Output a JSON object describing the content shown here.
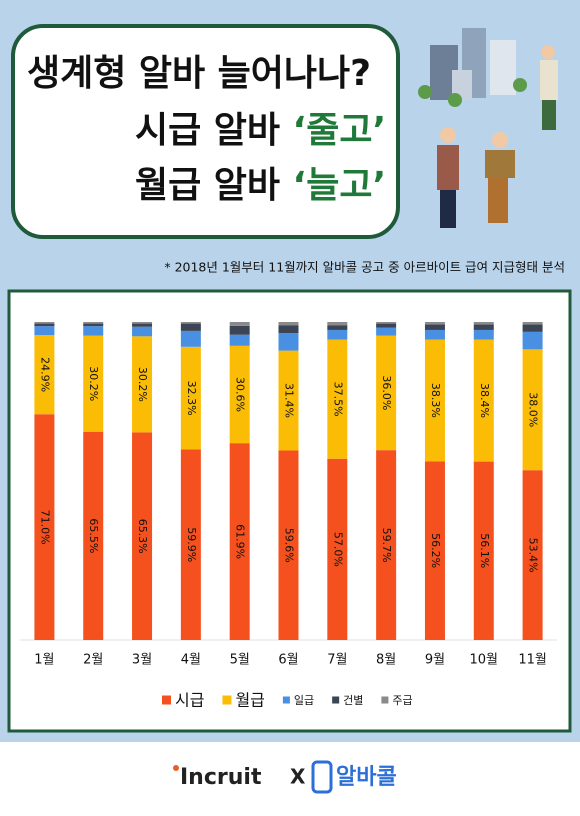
{
  "header": {
    "title_lines": [
      [
        {
          "text": "생계형 알바 늘어나나?",
          "accent": false
        }
      ],
      [
        {
          "text": "시급 알바 ",
          "accent": false
        },
        {
          "text": "‘줄고’",
          "accent": true
        }
      ],
      [
        {
          "text": "월급 알바 ",
          "accent": false
        },
        {
          "text": "‘늘고’",
          "accent": true
        }
      ]
    ],
    "note": "* 2018년 1월부터 11월까지 알바콜 공고 중 아르바이트 급여 지급형태 분석"
  },
  "chart_data": {
    "type": "stacked_bar",
    "categories": [
      "1월",
      "2월",
      "3월",
      "4월",
      "5월",
      "6월",
      "7월",
      "8월",
      "9월",
      "10월",
      "11월"
    ],
    "ylim": [
      0,
      100
    ],
    "series": [
      {
        "name": "시급",
        "color": "#f4511e",
        "values": [
          71.0,
          65.5,
          65.3,
          59.9,
          61.9,
          59.6,
          57.0,
          59.7,
          56.2,
          56.1,
          53.4
        ],
        "value_labels": [
          "71.0%",
          "65.5%",
          "65.3%",
          "59.9%",
          "61.9%",
          "59.6%",
          "57.0%",
          "59.7%",
          "56.2%",
          "56.1%",
          "53.4%"
        ]
      },
      {
        "name": "월급",
        "color": "#fbbc05",
        "values": [
          24.9,
          30.2,
          30.2,
          32.3,
          30.6,
          31.4,
          37.5,
          36.0,
          38.3,
          38.4,
          38.0
        ],
        "value_labels": [
          "24.9%",
          "30.2%",
          "30.2%",
          "32.3%",
          "30.6%",
          "31.4%",
          "37.5%",
          "36.0%",
          "38.3%",
          "38.4%",
          "38.0%"
        ]
      },
      {
        "name": "일급",
        "color": "#4a90e2",
        "values": [
          2.8,
          3.0,
          3.0,
          5.0,
          3.5,
          5.5,
          3.0,
          2.5,
          3.0,
          3.0,
          5.5
        ]
      },
      {
        "name": "건별",
        "color": "#3b4556",
        "values": [
          0.8,
          0.8,
          1.0,
          2.3,
          2.8,
          2.5,
          1.5,
          1.3,
          1.7,
          1.7,
          2.3
        ]
      },
      {
        "name": "주급",
        "color": "#8a8a8a",
        "values": [
          0.5,
          0.5,
          0.5,
          0.5,
          1.2,
          1.0,
          1.0,
          0.5,
          0.8,
          0.8,
          0.8
        ]
      }
    ]
  },
  "footer": {
    "brand1": "Incruit",
    "sep": "X",
    "brand2": "알바콜"
  }
}
